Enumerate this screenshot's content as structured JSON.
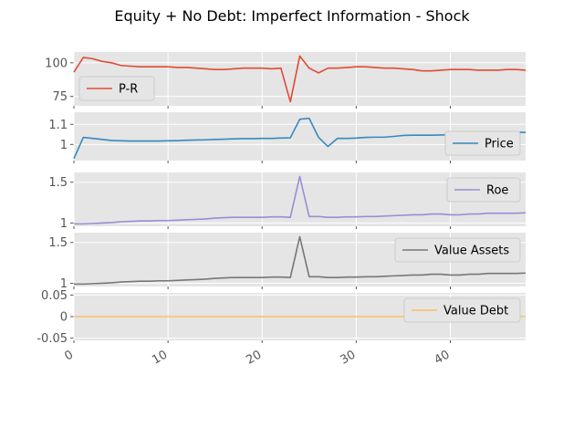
{
  "figure": {
    "title": "Equity + No Debt: Imperfect Information - Shock"
  },
  "colors": {
    "panel_bg": "#e5e5e5",
    "grid": "#ffffff",
    "tick_text": "#555555"
  },
  "chart_data": [
    {
      "type": "line",
      "series": [
        {
          "name": "P-R",
          "color": "#e24a33"
        }
      ],
      "ylim": [
        68,
        108
      ],
      "yticks": [
        75,
        100
      ],
      "legend": "bottom-left",
      "grid": true,
      "x": [
        0,
        1,
        2,
        3,
        4,
        5,
        6,
        7,
        8,
        9,
        10,
        11,
        12,
        13,
        14,
        15,
        16,
        17,
        18,
        19,
        20,
        21,
        22,
        23,
        24,
        25,
        26,
        27,
        28,
        29,
        30,
        31,
        32,
        33,
        34,
        35,
        36,
        37,
        38,
        39,
        40,
        41,
        42,
        43,
        44,
        45,
        46,
        47,
        48
      ],
      "values": [
        [
          93,
          104,
          103,
          101,
          100,
          98,
          97.5,
          97,
          97,
          97,
          97,
          96.5,
          96.5,
          96,
          95.5,
          95,
          95,
          95.5,
          96,
          96,
          96,
          95.5,
          96,
          71,
          105,
          96,
          92.5,
          96,
          96,
          96.5,
          97,
          97,
          96.5,
          96,
          96,
          95.5,
          95,
          94,
          94,
          94.5,
          95,
          95,
          95,
          94.5,
          94.5,
          94.5,
          95,
          95,
          94.5
        ]
      ]
    },
    {
      "type": "line",
      "series": [
        {
          "name": "Price",
          "color": "#348abd"
        }
      ],
      "ylim": [
        0.92,
        1.16
      ],
      "yticks": [
        1.0,
        1.1
      ],
      "legend": "bottom-right",
      "grid": true,
      "x": [
        0,
        1,
        2,
        3,
        4,
        5,
        6,
        7,
        8,
        9,
        10,
        11,
        12,
        13,
        14,
        15,
        16,
        17,
        18,
        19,
        20,
        21,
        22,
        23,
        24,
        25,
        26,
        27,
        28,
        29,
        30,
        31,
        32,
        33,
        34,
        35,
        36,
        37,
        38,
        39,
        40,
        41,
        42,
        43,
        44,
        45,
        46,
        47,
        48
      ],
      "values": [
        [
          0.93,
          1.035,
          1.03,
          1.025,
          1.02,
          1.018,
          1.017,
          1.017,
          1.017,
          1.017,
          1.018,
          1.019,
          1.021,
          1.022,
          1.023,
          1.025,
          1.026,
          1.028,
          1.029,
          1.029,
          1.03,
          1.03,
          1.032,
          1.033,
          1.125,
          1.13,
          1.035,
          0.99,
          1.03,
          1.03,
          1.032,
          1.035,
          1.036,
          1.036,
          1.04,
          1.045,
          1.046,
          1.046,
          1.046,
          1.047,
          1.048,
          1.048,
          1.05,
          1.053,
          1.056,
          1.058,
          1.059,
          1.06,
          1.06
        ]
      ]
    },
    {
      "type": "line",
      "series": [
        {
          "name": "Roe",
          "color": "#988ed5"
        }
      ],
      "ylim": [
        0.96,
        1.62
      ],
      "yticks": [
        1.0,
        1.5
      ],
      "legend": "top-right",
      "grid": true,
      "x": [
        0,
        1,
        2,
        3,
        4,
        5,
        6,
        7,
        8,
        9,
        10,
        11,
        12,
        13,
        14,
        15,
        16,
        17,
        18,
        19,
        20,
        21,
        22,
        23,
        24,
        25,
        26,
        27,
        28,
        29,
        30,
        31,
        32,
        33,
        34,
        35,
        36,
        37,
        38,
        39,
        40,
        41,
        42,
        43,
        44,
        45,
        46,
        47,
        48
      ],
      "values": [
        [
          0.99,
          0.99,
          0.995,
          1.0,
          1.005,
          1.015,
          1.02,
          1.025,
          1.025,
          1.03,
          1.03,
          1.035,
          1.04,
          1.045,
          1.05,
          1.06,
          1.065,
          1.07,
          1.07,
          1.07,
          1.07,
          1.075,
          1.075,
          1.07,
          1.57,
          1.08,
          1.08,
          1.07,
          1.07,
          1.075,
          1.075,
          1.08,
          1.08,
          1.085,
          1.09,
          1.095,
          1.1,
          1.1,
          1.11,
          1.11,
          1.1,
          1.1,
          1.11,
          1.11,
          1.12,
          1.12,
          1.12,
          1.12,
          1.125
        ]
      ]
    },
    {
      "type": "line",
      "series": [
        {
          "name": "Value Assets",
          "color": "#777777"
        }
      ],
      "ylim": [
        0.96,
        1.62
      ],
      "yticks": [
        1.0,
        1.5
      ],
      "legend": "top-right",
      "grid": true,
      "x": [
        0,
        1,
        2,
        3,
        4,
        5,
        6,
        7,
        8,
        9,
        10,
        11,
        12,
        13,
        14,
        15,
        16,
        17,
        18,
        19,
        20,
        21,
        22,
        23,
        24,
        25,
        26,
        27,
        28,
        29,
        30,
        31,
        32,
        33,
        34,
        35,
        36,
        37,
        38,
        39,
        40,
        41,
        42,
        43,
        44,
        45,
        46,
        47,
        48
      ],
      "values": [
        [
          0.99,
          0.99,
          0.995,
          1.0,
          1.005,
          1.015,
          1.02,
          1.025,
          1.025,
          1.03,
          1.03,
          1.035,
          1.04,
          1.045,
          1.05,
          1.06,
          1.065,
          1.07,
          1.07,
          1.07,
          1.07,
          1.075,
          1.075,
          1.07,
          1.57,
          1.08,
          1.08,
          1.07,
          1.07,
          1.075,
          1.075,
          1.08,
          1.08,
          1.085,
          1.09,
          1.095,
          1.1,
          1.1,
          1.11,
          1.11,
          1.1,
          1.1,
          1.11,
          1.11,
          1.12,
          1.12,
          1.12,
          1.12,
          1.125
        ]
      ]
    },
    {
      "type": "line",
      "series": [
        {
          "name": "Value Debt",
          "color": "#fbc15e"
        }
      ],
      "ylim": [
        -0.055,
        0.055
      ],
      "yticks": [
        -0.05,
        0.0,
        0.05
      ],
      "legend": "top-right",
      "grid": true,
      "x": [
        0,
        48
      ],
      "values": [
        [
          0,
          0
        ]
      ],
      "xlim": [
        0,
        48
      ],
      "xticks": [
        0,
        10,
        20,
        30,
        40
      ]
    }
  ]
}
